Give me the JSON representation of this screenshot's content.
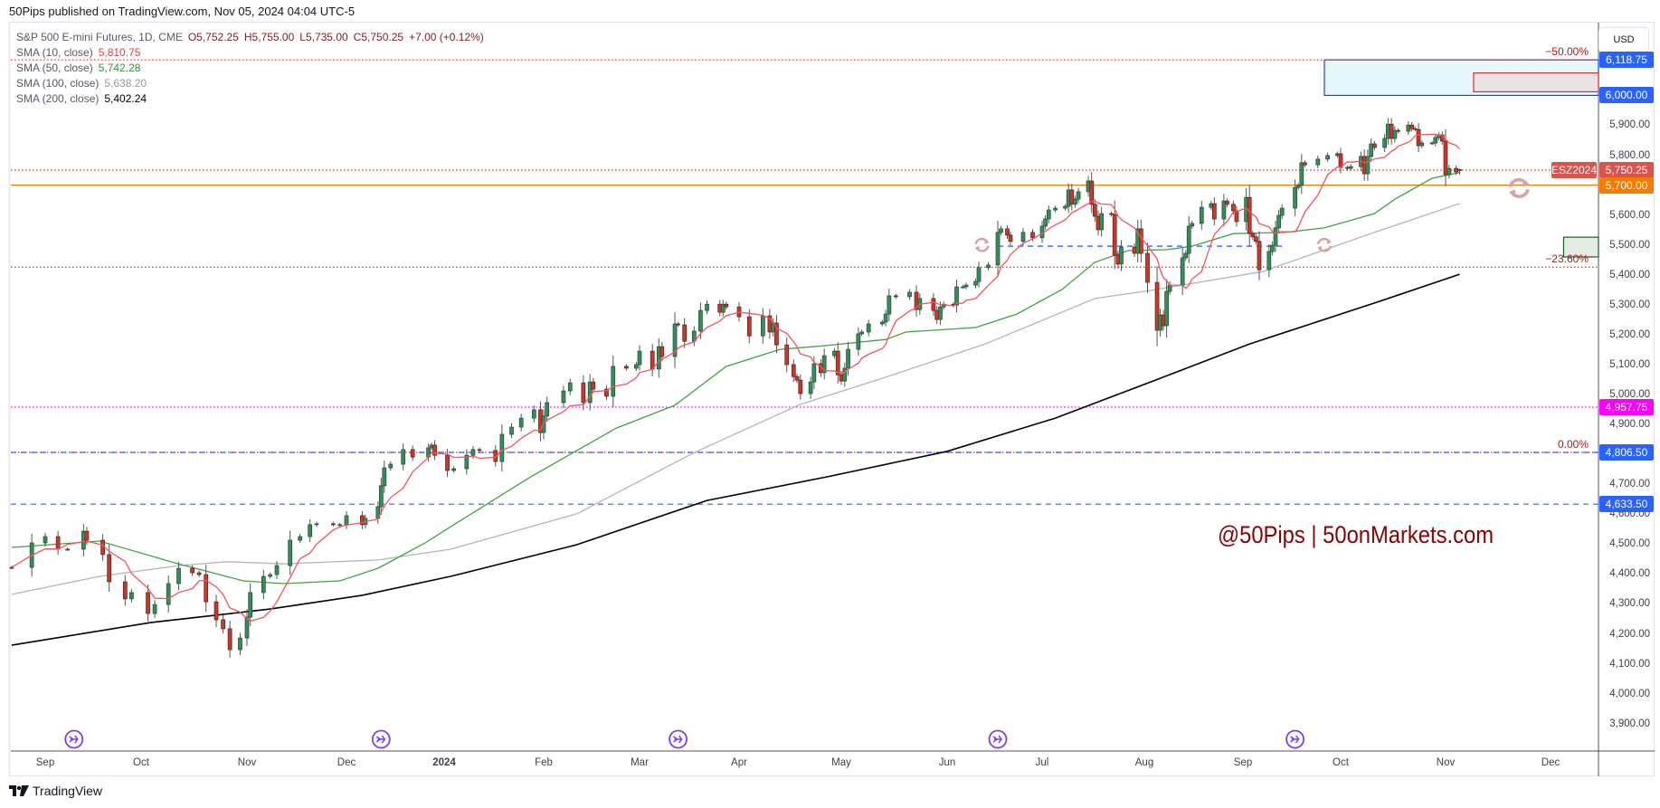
{
  "header": {
    "published": "50Pips published on TradingView.com, Nov 05, 2024 04:04 UTC-5"
  },
  "legend": {
    "symbol": "S&P 500 E-mini Futures, 1D, CME",
    "open": "O5,752.25",
    "high": "H5,755.00",
    "low": "L5,735.00",
    "close": "C5,750.25",
    "change": "+7.00 (+0.12%)",
    "sma": [
      {
        "label": "SMA (10, close)",
        "value": "5,810.75",
        "color": "#f23645"
      },
      {
        "label": "SMA (50, close)",
        "value": "5,742.28",
        "color": "#388e3c"
      },
      {
        "label": "SMA (100, close)",
        "value": "5,638.20",
        "color": "#9598a1"
      },
      {
        "label": "SMA (200, close)",
        "value": "5,402.24",
        "color": "#000000"
      }
    ]
  },
  "price_axis": {
    "currency": "USD",
    "ticks": [
      "5,900.00",
      "5,800.00",
      "5,600.00",
      "5,500.00",
      "5,400.00",
      "5,300.00",
      "5,200.00",
      "5,100.00",
      "5,000.00",
      "4,900.00",
      "4,700.00",
      "4,600.00",
      "4,500.00",
      "4,400.00",
      "4,300.00",
      "4,200.00",
      "4,100.00",
      "4,000.00",
      "3,900.00"
    ],
    "tags": [
      {
        "text": "6,118.75",
        "color": "#2962ff"
      },
      {
        "text": "6,000.00",
        "color": "#2962ff"
      },
      {
        "text": "5,750.25",
        "color": "#d9534f"
      },
      {
        "text": "5,700.00",
        "color": "#f57c00"
      },
      {
        "text": "4,957.75",
        "color": "#ff00ff"
      },
      {
        "text": "4,806.50",
        "color": "#2962ff"
      },
      {
        "text": "4,633.50",
        "color": "#2962ff"
      }
    ],
    "symbol_tag": "ESZ2024"
  },
  "time_axis": {
    "ticks": [
      "Sep",
      "Oct",
      "Nov",
      "Dec",
      "2024",
      "Feb",
      "Mar",
      "Apr",
      "May",
      "Jun",
      "Jul",
      "Aug",
      "Sep",
      "Oct",
      "Nov",
      "Dec"
    ]
  },
  "fib_labels": [
    "−50.00%",
    "−23.60%",
    "0.00%"
  ],
  "watermark": "@50Pips | 50onMarkets.com",
  "footer": {
    "brand": "TradingView"
  },
  "chart_data": {
    "type": "candlestick",
    "title": "S&P 500 E-mini Futures, 1D, CME",
    "ylim": [
      3830,
      6330
    ],
    "grid": false,
    "colors": {
      "up": "#3a8a5c",
      "down": "#c23b2e",
      "sma10": "#f7525f",
      "sma50": "#43a047",
      "sma100": "#b2b5be",
      "sma200": "#000000"
    },
    "last_bar": {
      "date": "2024-11-05",
      "open": 5752.25,
      "high": 5755.0,
      "low": 5735.0,
      "close": 5750.25
    },
    "closes": [
      [
        "2023-08-22",
        4422
      ],
      [
        "2023-08-28",
        4504
      ],
      [
        "2023-09-01",
        4525
      ],
      [
        "2023-09-05",
        4483
      ],
      [
        "2023-09-08",
        4483
      ],
      [
        "2023-09-13",
        4543
      ],
      [
        "2023-09-14",
        4513
      ],
      [
        "2023-09-19",
        4465
      ],
      [
        "2023-09-21",
        4374
      ],
      [
        "2023-09-26",
        4317
      ],
      [
        "2023-09-28",
        4338
      ],
      [
        "2023-10-03",
        4268
      ],
      [
        "2023-10-05",
        4298
      ],
      [
        "2023-10-09",
        4368
      ],
      [
        "2023-10-12",
        4419
      ],
      [
        "2023-10-16",
        4404
      ],
      [
        "2023-10-18",
        4398
      ],
      [
        "2023-10-20",
        4307
      ],
      [
        "2023-10-23",
        4247
      ],
      [
        "2023-10-25",
        4217
      ],
      [
        "2023-10-27",
        4147
      ],
      [
        "2023-10-30",
        4186
      ],
      [
        "2023-11-01",
        4256
      ],
      [
        "2023-11-02",
        4338
      ],
      [
        "2023-11-06",
        4392
      ],
      [
        "2023-11-08",
        4398
      ],
      [
        "2023-11-10",
        4428
      ],
      [
        "2023-11-14",
        4513
      ],
      [
        "2023-11-17",
        4525
      ],
      [
        "2023-11-20",
        4565
      ],
      [
        "2023-11-22",
        4568
      ],
      [
        "2023-11-27",
        4565
      ],
      [
        "2023-11-29",
        4565
      ],
      [
        "2023-12-01",
        4595
      ],
      [
        "2023-12-06",
        4565
      ],
      [
        "2023-12-07",
        4586
      ],
      [
        "2023-12-11",
        4625
      ],
      [
        "2023-12-12",
        4695
      ],
      [
        "2023-12-13",
        4755
      ],
      [
        "2023-12-15",
        4767
      ],
      [
        "2023-12-19",
        4816
      ],
      [
        "2023-12-22",
        4791
      ],
      [
        "2023-12-27",
        4822
      ],
      [
        "2023-12-28",
        4831
      ],
      [
        "2023-12-29",
        4797
      ],
      [
        "2024-01-02",
        4746
      ],
      [
        "2024-01-04",
        4752
      ],
      [
        "2024-01-08",
        4797
      ],
      [
        "2024-01-10",
        4816
      ],
      [
        "2024-01-12",
        4813
      ],
      [
        "2024-01-17",
        4776
      ],
      [
        "2024-01-19",
        4867
      ],
      [
        "2024-01-22",
        4891
      ],
      [
        "2024-01-25",
        4921
      ],
      [
        "2024-01-29",
        4949
      ],
      [
        "2024-01-31",
        4873
      ],
      [
        "2024-02-01",
        4928
      ],
      [
        "2024-02-02",
        4973
      ],
      [
        "2024-02-07",
        5012
      ],
      [
        "2024-02-09",
        5039
      ],
      [
        "2024-02-13",
        4973
      ],
      [
        "2024-02-15",
        5042
      ],
      [
        "2024-02-16",
        5018
      ],
      [
        "2024-02-20",
        4994
      ],
      [
        "2024-02-22",
        5094
      ],
      [
        "2024-02-26",
        5088
      ],
      [
        "2024-02-29",
        5100
      ],
      [
        "2024-03-01",
        5145
      ],
      [
        "2024-03-05",
        5085
      ],
      [
        "2024-03-07",
        5160
      ],
      [
        "2024-03-08",
        5127
      ],
      [
        "2024-03-12",
        5236
      ],
      [
        "2024-03-13",
        5233
      ],
      [
        "2024-03-15",
        5178
      ],
      [
        "2024-03-18",
        5212
      ],
      [
        "2024-03-20",
        5281
      ],
      [
        "2024-03-22",
        5302
      ],
      [
        "2024-03-26",
        5275
      ],
      [
        "2024-03-27",
        5302
      ],
      [
        "2024-03-28",
        5293
      ],
      [
        "2024-04-01",
        5260
      ],
      [
        "2024-04-04",
        5196
      ],
      [
        "2024-04-08",
        5263
      ],
      [
        "2024-04-10",
        5209
      ],
      [
        "2024-04-11",
        5239
      ],
      [
        "2024-04-12",
        5166
      ],
      [
        "2024-04-15",
        5100
      ],
      [
        "2024-04-17",
        5060
      ],
      [
        "2024-04-18",
        5048
      ],
      [
        "2024-04-19",
        5003
      ],
      [
        "2024-04-22",
        5042
      ],
      [
        "2024-04-23",
        5103
      ],
      [
        "2024-04-25",
        5073
      ],
      [
        "2024-04-26",
        5130
      ],
      [
        "2024-04-29",
        5145
      ],
      [
        "2024-04-30",
        5066
      ],
      [
        "2024-05-01",
        5045
      ],
      [
        "2024-05-02",
        5088
      ],
      [
        "2024-05-03",
        5151
      ],
      [
        "2024-05-06",
        5203
      ],
      [
        "2024-05-07",
        5209
      ],
      [
        "2024-05-09",
        5236
      ],
      [
        "2024-05-13",
        5242
      ],
      [
        "2024-05-14",
        5269
      ],
      [
        "2024-05-15",
        5330
      ],
      [
        "2024-05-17",
        5327
      ],
      [
        "2024-05-21",
        5342
      ],
      [
        "2024-05-23",
        5284
      ],
      [
        "2024-05-24",
        5321
      ],
      [
        "2024-05-28",
        5281
      ],
      [
        "2024-05-29",
        5251
      ],
      [
        "2024-05-30",
        5293
      ],
      [
        "2024-05-31",
        5302
      ],
      [
        "2024-06-03",
        5299
      ],
      [
        "2024-06-04",
        5360
      ],
      [
        "2024-06-06",
        5360
      ],
      [
        "2024-06-07",
        5366
      ],
      [
        "2024-06-10",
        5378
      ],
      [
        "2024-06-11",
        5424
      ],
      [
        "2024-06-14",
        5433
      ],
      [
        "2024-06-17",
        5542
      ],
      [
        "2024-06-18",
        5554
      ],
      [
        "2024-06-20",
        5533
      ],
      [
        "2024-06-21",
        5512
      ],
      [
        "2024-06-25",
        5542
      ],
      [
        "2024-06-28",
        5524
      ],
      [
        "2024-07-01",
        5563
      ],
      [
        "2024-07-02",
        5587
      ],
      [
        "2024-07-03",
        5617
      ],
      [
        "2024-07-05",
        5623
      ],
      [
        "2024-07-08",
        5629
      ],
      [
        "2024-07-09",
        5684
      ],
      [
        "2024-07-10",
        5636
      ],
      [
        "2024-07-11",
        5653
      ],
      [
        "2024-07-12",
        5678
      ],
      [
        "2024-07-15",
        5714
      ],
      [
        "2024-07-16",
        5636
      ],
      [
        "2024-07-17",
        5596
      ],
      [
        "2024-07-18",
        5551
      ],
      [
        "2024-07-19",
        5605
      ],
      [
        "2024-07-22",
        5602
      ],
      [
        "2024-07-23",
        5466
      ],
      [
        "2024-07-24",
        5436
      ],
      [
        "2024-07-25",
        5493
      ],
      [
        "2024-07-29",
        5472
      ],
      [
        "2024-07-30",
        5554
      ],
      [
        "2024-07-31",
        5472
      ],
      [
        "2024-08-02",
        5375
      ],
      [
        "2024-08-05",
        5215
      ],
      [
        "2024-08-06",
        5266
      ],
      [
        "2024-08-07",
        5230
      ],
      [
        "2024-08-08",
        5345
      ],
      [
        "2024-08-09",
        5366
      ],
      [
        "2024-08-13",
        5457
      ],
      [
        "2024-08-14",
        5472
      ],
      [
        "2024-08-15",
        5563
      ],
      [
        "2024-08-16",
        5572
      ],
      [
        "2024-08-19",
        5626
      ],
      [
        "2024-08-22",
        5638
      ],
      [
        "2024-08-23",
        5587
      ],
      [
        "2024-08-26",
        5647
      ],
      [
        "2024-08-27",
        5636
      ],
      [
        "2024-08-29",
        5614
      ],
      [
        "2024-08-30",
        5578
      ],
      [
        "2024-09-02",
        5659
      ],
      [
        "2024-09-03",
        5538
      ],
      [
        "2024-09-04",
        5527
      ],
      [
        "2024-09-05",
        5512
      ],
      [
        "2024-09-06",
        5417
      ],
      [
        "2024-09-09",
        5478
      ],
      [
        "2024-09-10",
        5499
      ],
      [
        "2024-09-11",
        5557
      ],
      [
        "2024-09-12",
        5599
      ],
      [
        "2024-09-13",
        5623
      ],
      [
        "2024-09-17",
        5692
      ],
      [
        "2024-09-18",
        5699
      ],
      [
        "2024-09-19",
        5775
      ],
      [
        "2024-09-20",
        5768
      ],
      [
        "2024-09-24",
        5787
      ],
      [
        "2024-09-27",
        5799
      ],
      [
        "2024-09-30",
        5805
      ],
      [
        "2024-10-01",
        5759
      ],
      [
        "2024-10-03",
        5756
      ],
      [
        "2024-10-04",
        5762
      ],
      [
        "2024-10-07",
        5796
      ],
      [
        "2024-10-08",
        5738
      ],
      [
        "2024-10-09",
        5796
      ],
      [
        "2024-10-10",
        5838
      ],
      [
        "2024-10-11",
        5826
      ],
      [
        "2024-10-14",
        5856
      ],
      [
        "2024-10-15",
        5904
      ],
      [
        "2024-10-16",
        5856
      ],
      [
        "2024-10-17",
        5883
      ],
      [
        "2024-10-18",
        5880
      ],
      [
        "2024-10-21",
        5901
      ],
      [
        "2024-10-22",
        5889
      ],
      [
        "2024-10-23",
        5886
      ],
      [
        "2024-10-24",
        5832
      ],
      [
        "2024-10-25",
        5841
      ],
      [
        "2024-10-28",
        5841
      ],
      [
        "2024-10-29",
        5859
      ],
      [
        "2024-10-30",
        5868
      ],
      [
        "2024-10-31",
        5847
      ],
      [
        "2024-11-01",
        5735
      ],
      [
        "2024-11-02",
        5756
      ],
      [
        "2024-11-04",
        5744
      ],
      [
        "2024-11-05",
        5750.25
      ]
    ],
    "sma_lines": {
      "sma50": [
        [
          "2023-08-22",
          4489
        ],
        [
          "2023-09-18",
          4510
        ],
        [
          "2023-10-12",
          4434
        ],
        [
          "2023-10-31",
          4377
        ],
        [
          "2023-11-12",
          4368
        ],
        [
          "2023-11-29",
          4377
        ],
        [
          "2023-12-11",
          4419
        ],
        [
          "2023-12-26",
          4504
        ],
        [
          "2024-01-03",
          4558
        ],
        [
          "2024-01-28",
          4725
        ],
        [
          "2024-02-23",
          4888
        ],
        [
          "2024-03-12",
          4964
        ],
        [
          "2024-03-28",
          5094
        ],
        [
          "2024-04-13",
          5151
        ],
        [
          "2024-04-26",
          5163
        ],
        [
          "2024-05-14",
          5184
        ],
        [
          "2024-05-20",
          5209
        ],
        [
          "2024-06-10",
          5224
        ],
        [
          "2024-06-23",
          5269
        ],
        [
          "2024-07-07",
          5351
        ],
        [
          "2024-07-17",
          5442
        ],
        [
          "2024-07-27",
          5481
        ],
        [
          "2024-08-08",
          5484
        ],
        [
          "2024-08-16",
          5496
        ],
        [
          "2024-08-29",
          5538
        ],
        [
          "2024-09-14",
          5542
        ],
        [
          "2024-09-26",
          5557
        ],
        [
          "2024-10-11",
          5605
        ],
        [
          "2024-10-17",
          5653
        ],
        [
          "2024-10-28",
          5723
        ],
        [
          "2024-11-05",
          5742.28
        ]
      ],
      "sma100": [
        [
          "2023-08-22",
          4332
        ],
        [
          "2023-09-18",
          4392
        ],
        [
          "2023-10-12",
          4428
        ],
        [
          "2023-10-26",
          4441
        ],
        [
          "2023-11-12",
          4434
        ],
        [
          "2023-12-11",
          4447
        ],
        [
          "2024-01-03",
          4483
        ],
        [
          "2024-02-11",
          4601
        ],
        [
          "2024-03-18",
          4806
        ],
        [
          "2024-04-19",
          4967
        ],
        [
          "2024-05-14",
          5058
        ],
        [
          "2024-06-13",
          5169
        ],
        [
          "2024-07-17",
          5321
        ],
        [
          "2024-08-03",
          5348
        ],
        [
          "2024-09-07",
          5411
        ],
        [
          "2024-10-11",
          5542
        ],
        [
          "2024-11-05",
          5638.2
        ]
      ],
      "sma200": [
        [
          "2023-08-22",
          4162
        ],
        [
          "2023-10-04",
          4238
        ],
        [
          "2023-11-08",
          4283
        ],
        [
          "2023-12-06",
          4329
        ],
        [
          "2024-01-03",
          4392
        ],
        [
          "2024-02-11",
          4498
        ],
        [
          "2024-03-22",
          4646
        ],
        [
          "2024-04-27",
          4725
        ],
        [
          "2024-06-01",
          4810
        ],
        [
          "2024-07-05",
          4921
        ],
        [
          "2024-08-03",
          5042
        ],
        [
          "2024-09-03",
          5169
        ],
        [
          "2024-10-11",
          5306
        ],
        [
          "2024-11-05",
          5402.24
        ]
      ]
    },
    "levels": [
      {
        "price": 6118.75,
        "style": "dotted",
        "color": "#d32f2f",
        "fib": "−50.00%"
      },
      {
        "price": 5750.25,
        "style": "dotted",
        "color": "#d32f2f"
      },
      {
        "price": 5700.0,
        "style": "solid",
        "color": "#f57c00"
      },
      {
        "price": 5425.9,
        "style": "dotted",
        "color": "#d32f2f",
        "fib": "−23.60%"
      },
      {
        "price": 4957.75,
        "style": "dotted",
        "color": "#ff00ff"
      },
      {
        "price": 4806.5,
        "style": "dotted",
        "color": "#d32f2f",
        "fib": "0.00%"
      },
      {
        "price": 4806.5,
        "style": "dashed",
        "color": "#2962ff"
      },
      {
        "price": 4633.5,
        "style": "dashed",
        "color": "#2962ff"
      }
    ],
    "segments": [
      {
        "from": "2024-06-17",
        "to": "2024-09-13",
        "price": 5496,
        "color": "#2962ff"
      }
    ],
    "zones": [
      {
        "from": "2024-09-26",
        "top": 6118.75,
        "bottom": 6000,
        "fill": "#e6f8fb",
        "stroke": "#1848cc"
      },
      {
        "from": "2024-11-09",
        "top": 6075,
        "bottom": 6012,
        "fill": "#e8e4e6",
        "stroke": "#d32f2f"
      },
      {
        "from": "2024-12-05",
        "top": 5526,
        "bottom": 5460,
        "fill": "#e4ece4",
        "stroke": "#1b5e20"
      }
    ],
    "rollover_markers": [
      "2023-09-10",
      "2023-12-12",
      "2024-03-13",
      "2024-06-17",
      "2024-09-17"
    ],
    "rotate_icons": [
      {
        "date": "2024-06-12",
        "price": 5500
      },
      {
        "date": "2024-09-26",
        "price": 5500
      },
      {
        "date": "2024-11-22",
        "price": 5690
      }
    ]
  }
}
